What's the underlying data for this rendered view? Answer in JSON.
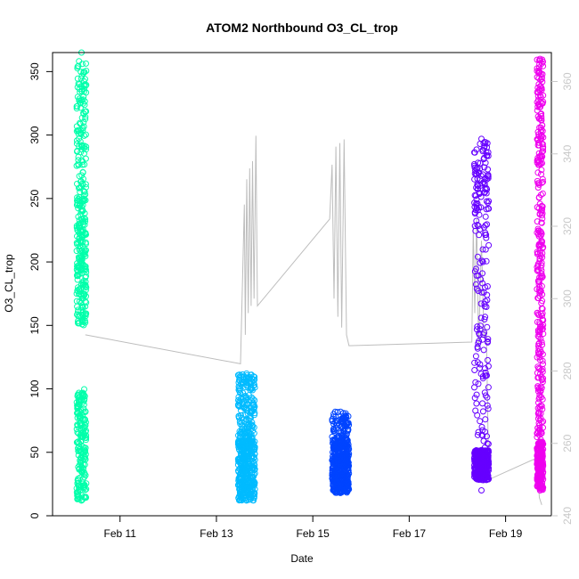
{
  "chart_data": {
    "type": "scatter",
    "title": "ATOM2 Northbound O3_CL_trop",
    "xlabel": "Date",
    "ylabel": "O3_CL_trop",
    "x_unit": "day (February)",
    "xlim": [
      9.6,
      19.95
    ],
    "ylim": [
      0,
      365
    ],
    "y_ticks": [
      0,
      50,
      100,
      150,
      200,
      250,
      300,
      350
    ],
    "x_ticks": [
      {
        "value": 11,
        "label": "Feb 11"
      },
      {
        "value": 13,
        "label": "Feb 13"
      },
      {
        "value": 15,
        "label": "Feb 15"
      },
      {
        "value": 17,
        "label": "Feb 17"
      },
      {
        "value": 19,
        "label": "Feb 19"
      }
    ],
    "secondary_axis": {
      "ylim": [
        240,
        368
      ],
      "ticks": [
        240,
        260,
        280,
        300,
        320,
        340,
        360
      ],
      "color": "#c8c8c8"
    },
    "series": [
      {
        "color": "#00ffaa",
        "x_range": [
          10.1,
          10.3
        ],
        "y_range": [
          12,
          365
        ],
        "clusters": [
          [
            12,
            100,
            0.35
          ],
          [
            150,
            260,
            0.45
          ],
          [
            260,
            360,
            0.2
          ]
        ]
      },
      {
        "color": "#00bbff",
        "x_range": [
          13.45,
          13.8
        ],
        "y_range": [
          12,
          112
        ],
        "clusters": [
          [
            12,
            60,
            0.7
          ],
          [
            60,
            112,
            0.3
          ]
        ]
      },
      {
        "color": "#0044ff",
        "x_range": [
          15.4,
          15.75
        ],
        "y_range": [
          18,
          82
        ],
        "clusters": [
          [
            18,
            60,
            0.85
          ],
          [
            60,
            82,
            0.15
          ]
        ]
      },
      {
        "color": "#6600ff",
        "x_range": [
          18.35,
          18.65
        ],
        "y_range": [
          20,
          297
        ],
        "clusters": [
          [
            28,
            52,
            0.6
          ],
          [
            52,
            240,
            0.25
          ],
          [
            240,
            297,
            0.15
          ]
        ]
      },
      {
        "color": "#ee00ee",
        "x_range": [
          19.65,
          19.78
        ],
        "y_range": [
          20,
          360
        ],
        "clusters": [
          [
            20,
            60,
            0.35
          ],
          [
            60,
            340,
            0.6
          ],
          [
            340,
            360,
            0.05
          ]
        ]
      }
    ],
    "secondary_line": {
      "color": "#bdbdbd",
      "points": [
        [
          10.28,
          290
        ],
        [
          13.5,
          282
        ],
        [
          13.58,
          326
        ],
        [
          13.6,
          290
        ],
        [
          13.63,
          333
        ],
        [
          13.66,
          296
        ],
        [
          13.69,
          336
        ],
        [
          13.72,
          298
        ],
        [
          13.75,
          338
        ],
        [
          13.78,
          300
        ],
        [
          13.82,
          345
        ],
        [
          13.85,
          298
        ],
        [
          15.35,
          322
        ],
        [
          15.4,
          337
        ],
        [
          15.44,
          300
        ],
        [
          15.48,
          342
        ],
        [
          15.52,
          295
        ],
        [
          15.56,
          343
        ],
        [
          15.6,
          292
        ],
        [
          15.65,
          344
        ],
        [
          15.7,
          290
        ],
        [
          15.75,
          287
        ],
        [
          18.3,
          288
        ],
        [
          18.33,
          320
        ],
        [
          18.36,
          296
        ],
        [
          18.4,
          322
        ],
        [
          18.44,
          286
        ],
        [
          18.5,
          316
        ],
        [
          18.55,
          289
        ],
        [
          18.6,
          291
        ],
        [
          18.65,
          250
        ],
        [
          19.65,
          256
        ],
        [
          19.7,
          245
        ],
        [
          19.75,
          243
        ]
      ]
    }
  }
}
